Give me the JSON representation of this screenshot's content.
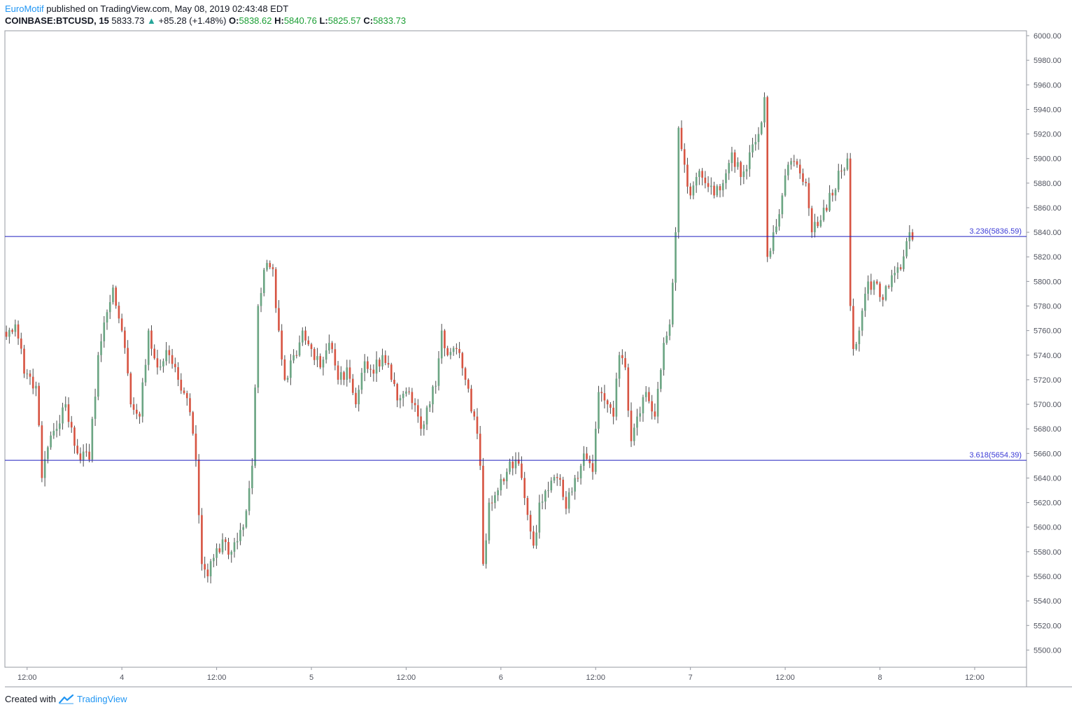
{
  "header": {
    "author": "EuroMotif",
    "published": " published on TradingView.com, May 08, 2019 02:43:48 EDT",
    "symbol": "COINBASE:BTCUSD, 15",
    "last": "5833.73",
    "change_arrow": "▲",
    "change": "+85.28 (+1.48%)",
    "o_label": "O:",
    "o_val": "5838.62",
    "h_label": "H:",
    "h_val": "5840.76",
    "l_label": "L:",
    "l_val": "5825.57",
    "c_label": "C:",
    "c_val": "5833.73"
  },
  "footer": {
    "created": "Created with",
    "brand": "TradingView"
  },
  "colors": {
    "up": "#6ba583",
    "down": "#d75442",
    "hline": "#1f1fbf",
    "fib_text": "#3b3bd6",
    "axis_text": "#50535e",
    "border": "#9598a1"
  },
  "chart_data": {
    "type": "candlestick",
    "y_ticks": [
      6000,
      5980,
      5960,
      5940,
      5920,
      5900,
      5880,
      5860,
      5840,
      5820,
      5800,
      5780,
      5760,
      5740,
      5720,
      5700,
      5680,
      5660,
      5640,
      5620,
      5600,
      5580,
      5560,
      5540,
      5520,
      5500
    ],
    "ylim": [
      5486,
      6004
    ],
    "x_ticks": [
      "12:00",
      "4",
      "12:00",
      "5",
      "12:00",
      "6",
      "12:00",
      "7",
      "12:00",
      "8",
      "12:00"
    ],
    "x_tick_index": [
      7,
      39,
      71,
      103,
      135,
      167,
      199,
      231,
      263,
      295,
      327
    ],
    "bars_total": 345,
    "horizontal_levels": [
      {
        "label": "3.236(5836.59)",
        "value": 5836.59
      },
      {
        "label": "3.618(5654.39)",
        "value": 5654.39
      }
    ],
    "anchors": [
      [
        0,
        5755
      ],
      [
        3,
        5765
      ],
      [
        6,
        5725
      ],
      [
        10,
        5715
      ],
      [
        12,
        5640
      ],
      [
        14,
        5665
      ],
      [
        17,
        5680
      ],
      [
        20,
        5700
      ],
      [
        24,
        5660
      ],
      [
        28,
        5655
      ],
      [
        31,
        5740
      ],
      [
        34,
        5775
      ],
      [
        36,
        5795
      ],
      [
        39,
        5760
      ],
      [
        42,
        5700
      ],
      [
        45,
        5690
      ],
      [
        48,
        5760
      ],
      [
        51,
        5730
      ],
      [
        55,
        5740
      ],
      [
        58,
        5720
      ],
      [
        61,
        5705
      ],
      [
        64,
        5655
      ],
      [
        66,
        5570
      ],
      [
        68,
        5560
      ],
      [
        70,
        5575
      ],
      [
        73,
        5590
      ],
      [
        76,
        5580
      ],
      [
        80,
        5600
      ],
      [
        83,
        5650
      ],
      [
        85,
        5780
      ],
      [
        88,
        5815
      ],
      [
        90,
        5810
      ],
      [
        92,
        5760
      ],
      [
        94,
        5720
      ],
      [
        97,
        5740
      ],
      [
        100,
        5760
      ],
      [
        103,
        5745
      ],
      [
        106,
        5730
      ],
      [
        109,
        5750
      ],
      [
        112,
        5720
      ],
      [
        115,
        5730
      ],
      [
        118,
        5700
      ],
      [
        121,
        5735
      ],
      [
        124,
        5725
      ],
      [
        127,
        5740
      ],
      [
        130,
        5720
      ],
      [
        133,
        5705
      ],
      [
        136,
        5710
      ],
      [
        140,
        5680
      ],
      [
        143,
        5700
      ],
      [
        145,
        5715
      ],
      [
        147,
        5760
      ],
      [
        149,
        5740
      ],
      [
        152,
        5745
      ],
      [
        155,
        5720
      ],
      [
        158,
        5690
      ],
      [
        160,
        5650
      ],
      [
        161,
        5570
      ],
      [
        163,
        5620
      ],
      [
        166,
        5630
      ],
      [
        169,
        5645
      ],
      [
        172,
        5655
      ],
      [
        174,
        5640
      ],
      [
        176,
        5610
      ],
      [
        178,
        5585
      ],
      [
        180,
        5620
      ],
      [
        183,
        5630
      ],
      [
        186,
        5640
      ],
      [
        189,
        5615
      ],
      [
        192,
        5640
      ],
      [
        195,
        5660
      ],
      [
        198,
        5645
      ],
      [
        200,
        5710
      ],
      [
        203,
        5700
      ],
      [
        205,
        5690
      ],
      [
        207,
        5740
      ],
      [
        209,
        5730
      ],
      [
        211,
        5670
      ],
      [
        213,
        5690
      ],
      [
        216,
        5710
      ],
      [
        219,
        5690
      ],
      [
        222,
        5750
      ],
      [
        224,
        5765
      ],
      [
        226,
        5840
      ],
      [
        227,
        5925
      ],
      [
        229,
        5895
      ],
      [
        231,
        5870
      ],
      [
        233,
        5885
      ],
      [
        236,
        5880
      ],
      [
        239,
        5870
      ],
      [
        242,
        5880
      ],
      [
        245,
        5905
      ],
      [
        248,
        5885
      ],
      [
        251,
        5905
      ],
      [
        254,
        5920
      ],
      [
        256,
        5950
      ],
      [
        257,
        5820
      ],
      [
        259,
        5840
      ],
      [
        262,
        5870
      ],
      [
        264,
        5895
      ],
      [
        267,
        5895
      ],
      [
        270,
        5880
      ],
      [
        272,
        5840
      ],
      [
        274,
        5845
      ],
      [
        276,
        5860
      ],
      [
        279,
        5870
      ],
      [
        282,
        5890
      ],
      [
        284,
        5900
      ],
      [
        285,
        5780
      ],
      [
        286,
        5745
      ],
      [
        288,
        5760
      ],
      [
        290,
        5790
      ],
      [
        293,
        5800
      ],
      [
        296,
        5785
      ],
      [
        299,
        5805
      ],
      [
        302,
        5810
      ],
      [
        305,
        5840
      ],
      [
        306,
        5834
      ]
    ]
  }
}
